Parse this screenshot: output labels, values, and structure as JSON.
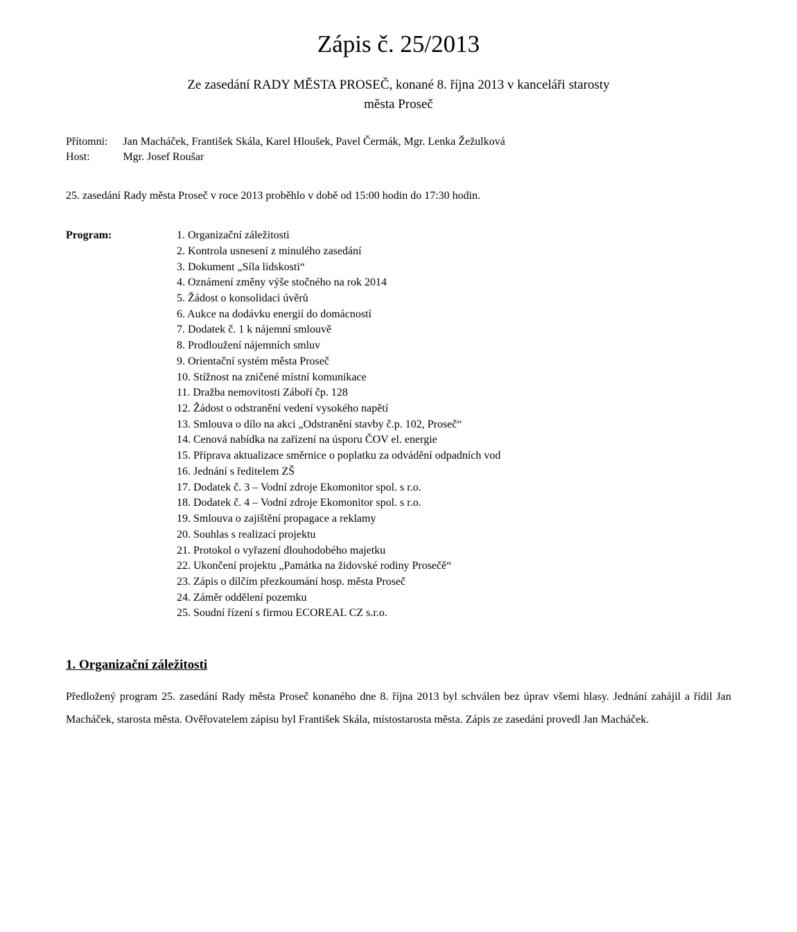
{
  "title": "Zápis č. 25/2013",
  "subtitle_line1": "Ze zasedání RADY MĚSTA PROSEČ, konané 8. října 2013 v kanceláři starosty",
  "subtitle_line2": "města Proseč",
  "info": {
    "present_label": "Přítomni:",
    "present_value": "Jan Macháček, František Skála, Karel Hloušek, Pavel Čermák, Mgr. Lenka Žežulková",
    "host_label": "Host:",
    "host_value": "Mgr. Josef Roušar"
  },
  "meeting_note": "25. zasedání Rady města Proseč v roce 2013 proběhlo v době od 15:00 hodin do 17:30 hodin.",
  "program_label": "Program:",
  "program_items": [
    "1. Organizační záležitosti",
    "2. Kontrola usnesení z minulého zasedání",
    "3. Dokument „Síla lidskosti“",
    "4. Oznámení změny výše stočného na rok 2014",
    "5. Žádost o konsolidaci úvěrů",
    "6. Aukce na dodávku energií do domácností",
    "7. Dodatek č. 1 k nájemní smlouvě",
    "8. Prodloužení nájemních smluv",
    "9. Orientační systém města Proseč",
    "10. Stížnost na zničené místní komunikace",
    "11. Dražba nemovitosti Záboří čp. 128",
    "12. Žádost o odstranění vedení vysokého napětí",
    "13. Smlouva o dílo na akci „Odstranění stavby č.p. 102, Proseč“",
    "14. Cenová nabídka na zařízení na úsporu ČOV el. energie",
    "15. Příprava aktualizace směrnice o poplatku za odvádění odpadních vod",
    "16. Jednání s ředitelem ZŠ",
    "17. Dodatek č. 3 – Vodní zdroje Ekomonitor spol. s r.o.",
    "18. Dodatek č. 4 – Vodní zdroje Ekomonitor spol. s r.o.",
    "19. Smlouva o zajištění propagace a reklamy",
    "20. Souhlas s realizací projektu",
    "21. Protokol o vyřazení dlouhodobého majetku",
    "22. Ukončení projektu „Památka na židovské rodiny Prosečě“",
    "23. Zápis o dílčím přezkoumání hosp. města Proseč",
    "24. Záměr oddělení pozemku",
    "25. Soudní řízení s firmou ECOREAL CZ s.r.o."
  ],
  "section1": {
    "heading": "1. Organizační záležitosti",
    "body": "Předložený program 25. zasedání Rady města Proseč konaného dne 8. října 2013 byl schválen bez úprav všemi hlasy. Jednání zahájil a řídil Jan Macháček, starosta města. Ověřovatelem zápisu byl František Skála, místostarosta města. Zápis ze zasedání provedl Jan Macháček."
  }
}
